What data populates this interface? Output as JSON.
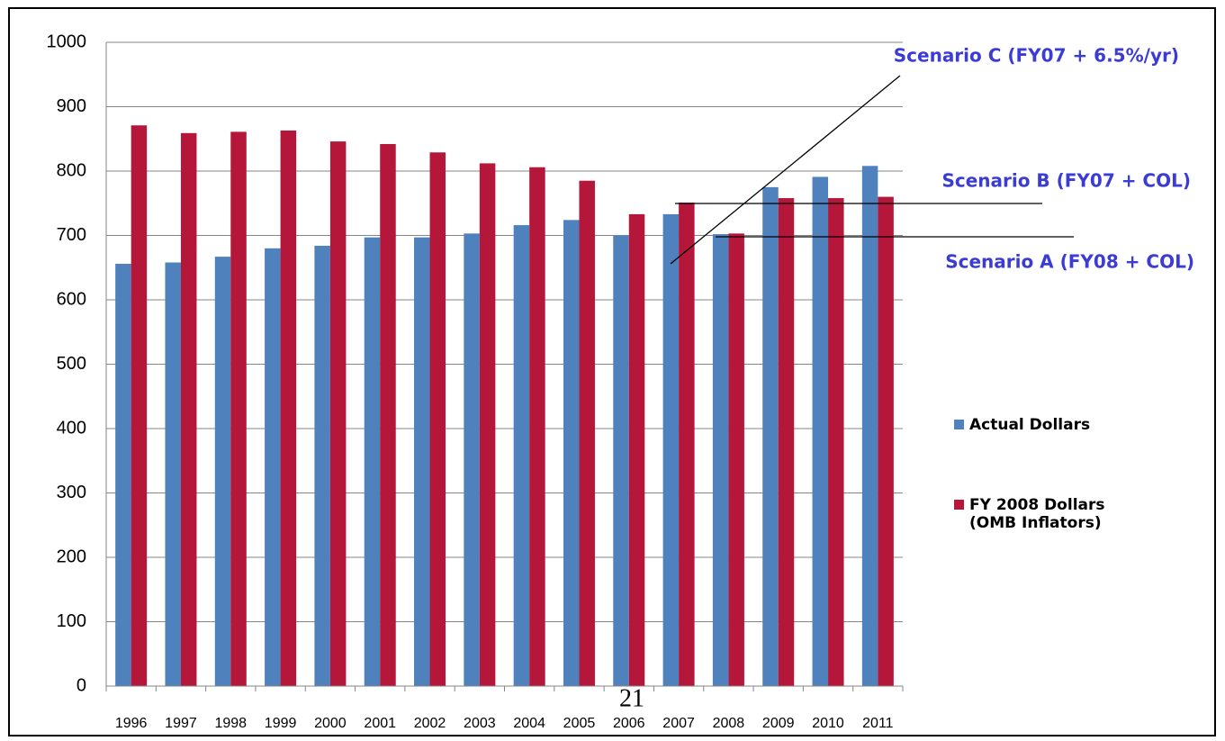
{
  "chart_data": {
    "type": "bar",
    "categories": [
      "1996",
      "1997",
      "1998",
      "1999",
      "2000",
      "2001",
      "2002",
      "2003",
      "2004",
      "2005",
      "2006",
      "2007",
      "2008",
      "2009",
      "2010",
      "2011"
    ],
    "series": [
      {
        "name": "Actual Dollars",
        "color": "#4f81bd",
        "values": [
          656,
          658,
          667,
          680,
          684,
          697,
          697,
          703,
          716,
          724,
          700,
          733,
          702,
          775,
          791,
          808
        ]
      },
      {
        "name": "FY 2008 Dollars (OMB Inflators)",
        "color": "#b5173a",
        "values": [
          871,
          859,
          861,
          863,
          846,
          842,
          829,
          812,
          806,
          785,
          733,
          751,
          703,
          758,
          758,
          760
        ]
      }
    ],
    "ylim": [
      0,
      1000
    ],
    "yticks": [
      0,
      100,
      200,
      300,
      400,
      500,
      600,
      700,
      800,
      900,
      1000
    ],
    "grid": true,
    "annotations": [
      "Scenario C (FY07 + 6.5%/yr)",
      "Scenario B (FY07 + COL)",
      "Scenario A (FY08 + COL)"
    ]
  },
  "page_number": "21"
}
